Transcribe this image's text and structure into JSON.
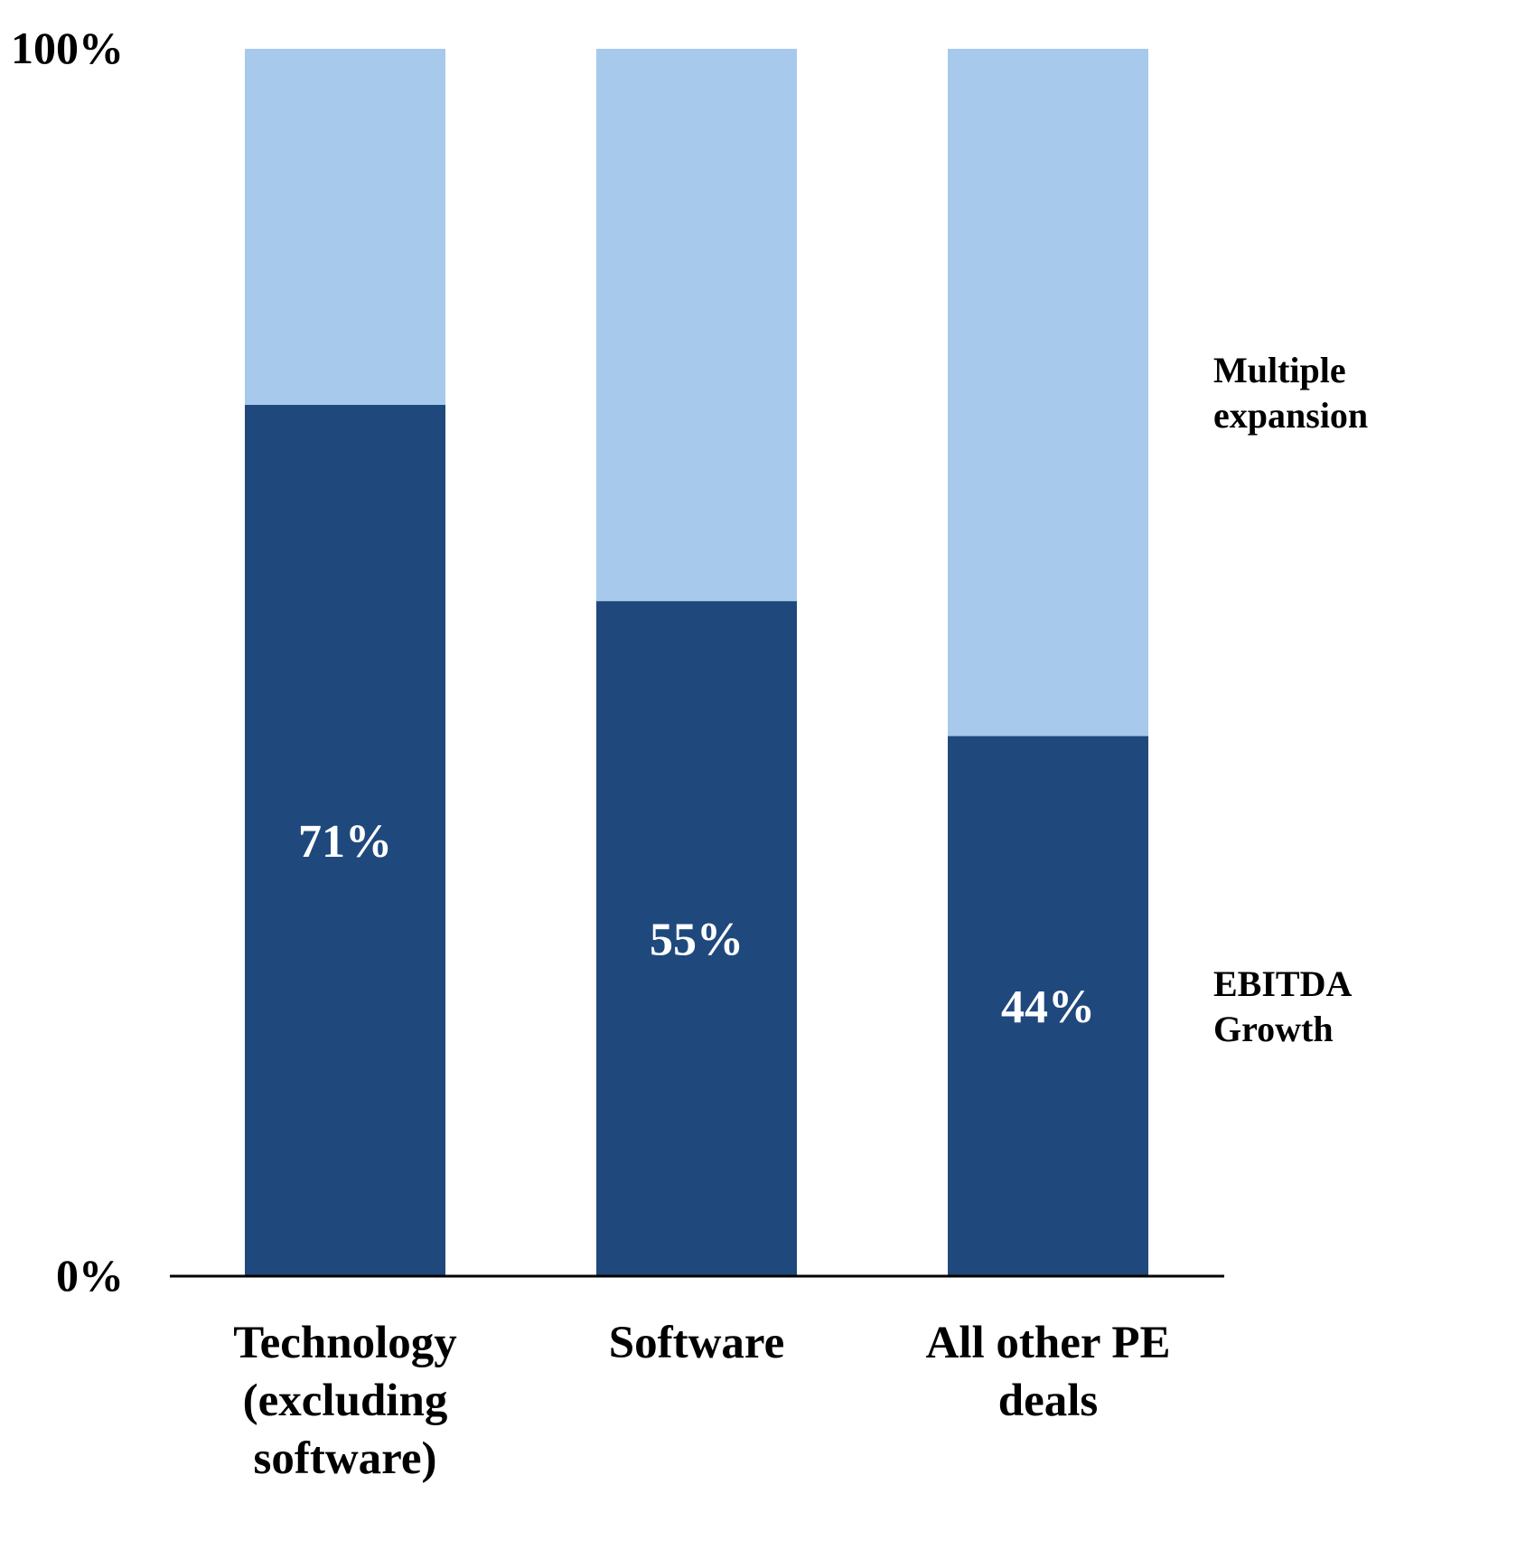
{
  "chart_data": {
    "type": "bar",
    "stacked": true,
    "categories": [
      [
        "Technology",
        "(excluding",
        "software)"
      ],
      [
        "Software"
      ],
      [
        "All other PE",
        "deals"
      ]
    ],
    "series": [
      {
        "name": [
          "EBITDA",
          "Growth"
        ],
        "values": [
          71,
          55,
          44
        ],
        "labels": [
          "71%",
          "55%",
          "44%"
        ],
        "color": "#1f497d"
      },
      {
        "name": [
          "Multiple",
          "expansion"
        ],
        "values": [
          29,
          45,
          56
        ],
        "color": "#a7c9ec"
      }
    ],
    "ylim": [
      0,
      100
    ],
    "yticks": [
      {
        "value": 0,
        "label": "0%"
      },
      {
        "value": 100,
        "label": "100%"
      }
    ],
    "grid": false,
    "legend": "right-inline"
  }
}
